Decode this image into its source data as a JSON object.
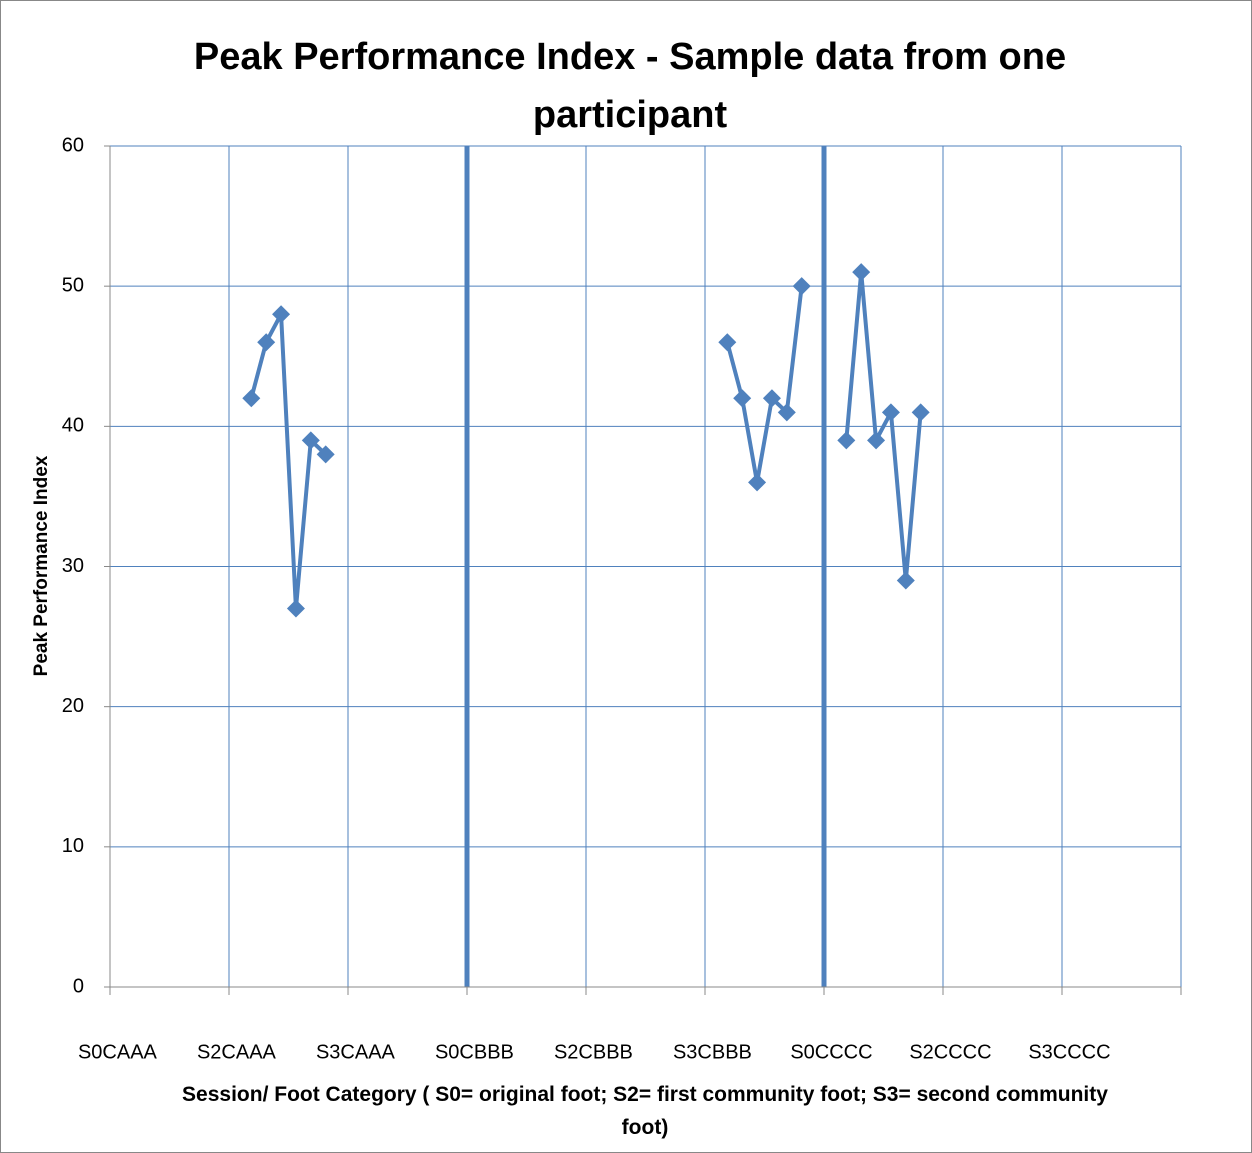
{
  "chart_data": {
    "type": "line",
    "title": "Peak Performance Index - Sample data from one participant",
    "x_label": "Session/ Foot  Category ( S0= original foot; S2= first community foot; S3= second community foot)",
    "y_label": "Peak Performance Index",
    "categories": [
      "S0CAAA",
      null,
      null,
      null,
      null,
      null,
      null,
      null,
      "S2CAAA",
      null,
      null,
      null,
      null,
      null,
      null,
      null,
      "S3CAAA",
      null,
      null,
      null,
      null,
      null,
      null,
      null,
      "S0CBBB",
      null,
      null,
      null,
      null,
      null,
      null,
      null,
      "S2CBBB",
      null,
      null,
      null,
      null,
      null,
      null,
      null,
      "S3CBBB",
      null,
      null,
      null,
      null,
      null,
      null,
      null,
      "S0CCCC",
      null,
      null,
      null,
      null,
      null,
      null,
      null,
      "S2CCCC",
      null,
      null,
      null,
      null,
      null,
      null,
      null,
      "S3CCCC",
      null,
      null,
      null,
      null,
      null,
      null,
      null
    ],
    "series": [
      {
        "color": "#4f81bd",
        "values": [
          null,
          null,
          null,
          null,
          null,
          null,
          null,
          null,
          null,
          42,
          46,
          48,
          27,
          39,
          38,
          null,
          null,
          null,
          null,
          null,
          null,
          null,
          null,
          null,
          null,
          null,
          null,
          null,
          null,
          null,
          null,
          null,
          null,
          null,
          null,
          null,
          null,
          null,
          null,
          null,
          null,
          46,
          42,
          36,
          42,
          41,
          50,
          null,
          null,
          39,
          51,
          39,
          41,
          29,
          41,
          null,
          null,
          null,
          null,
          null,
          null,
          null,
          null,
          null,
          null,
          null,
          null,
          null,
          null,
          null,
          null,
          null
        ]
      }
    ],
    "ylim": [
      0,
      60
    ],
    "yticks": [
      0,
      10,
      20,
      30,
      40,
      50,
      60
    ],
    "grid": true
  }
}
